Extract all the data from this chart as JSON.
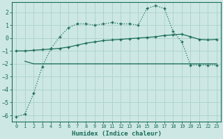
{
  "xlabel": "Humidex (Indice chaleur)",
  "background_color": "#cde8e4",
  "grid_color": "#b0d4cc",
  "line_color": "#1a6b5a",
  "xlim": [
    -0.5,
    23.5
  ],
  "ylim": [
    -6.5,
    2.8
  ],
  "yticks": [
    -6,
    -5,
    -4,
    -3,
    -2,
    -1,
    0,
    1,
    2
  ],
  "xticks": [
    0,
    1,
    2,
    3,
    4,
    5,
    6,
    7,
    8,
    9,
    10,
    11,
    12,
    13,
    14,
    15,
    16,
    17,
    18,
    19,
    20,
    21,
    22,
    23
  ],
  "curve1_x": [
    0,
    1,
    2,
    3,
    4,
    5,
    6,
    7,
    8,
    9,
    10,
    11,
    12,
    13,
    14,
    15,
    16,
    17,
    18,
    19,
    20,
    21,
    22,
    23
  ],
  "curve1_y": [
    -6.1,
    -5.9,
    -4.3,
    -2.2,
    -0.8,
    0.1,
    0.8,
    1.1,
    1.1,
    1.0,
    1.1,
    1.2,
    1.1,
    1.1,
    1.0,
    2.3,
    2.5,
    2.3,
    0.5,
    -0.3,
    -2.1,
    -2.1,
    -2.1,
    -2.1
  ],
  "curve2_x": [
    0,
    1,
    2,
    3,
    4,
    5,
    6,
    7,
    8,
    9,
    10,
    11,
    12,
    13,
    14,
    15,
    16,
    17,
    18,
    19,
    20,
    21,
    22,
    23
  ],
  "curve2_y": [
    -1.0,
    -1.0,
    -0.95,
    -0.9,
    -0.85,
    -0.8,
    -0.7,
    -0.55,
    -0.4,
    -0.3,
    -0.2,
    -0.15,
    -0.1,
    -0.05,
    0.0,
    0.05,
    0.1,
    0.2,
    0.25,
    0.3,
    0.1,
    -0.1,
    -0.15,
    -0.1
  ],
  "curve3_x": [
    1,
    2,
    3,
    4,
    5,
    6,
    7,
    8,
    9,
    10,
    11,
    12,
    13,
    14,
    15,
    16,
    17,
    18,
    19,
    20,
    21,
    22,
    23
  ],
  "curve3_y": [
    -1.8,
    -2.0,
    -2.0,
    -2.0,
    -2.0,
    -2.0,
    -2.0,
    -2.0,
    -2.0,
    -2.0,
    -2.0,
    -2.0,
    -2.0,
    -2.0,
    -2.0,
    -2.0,
    -2.0,
    -2.0,
    -2.0,
    -2.0,
    -2.0,
    -2.0,
    -2.0
  ]
}
